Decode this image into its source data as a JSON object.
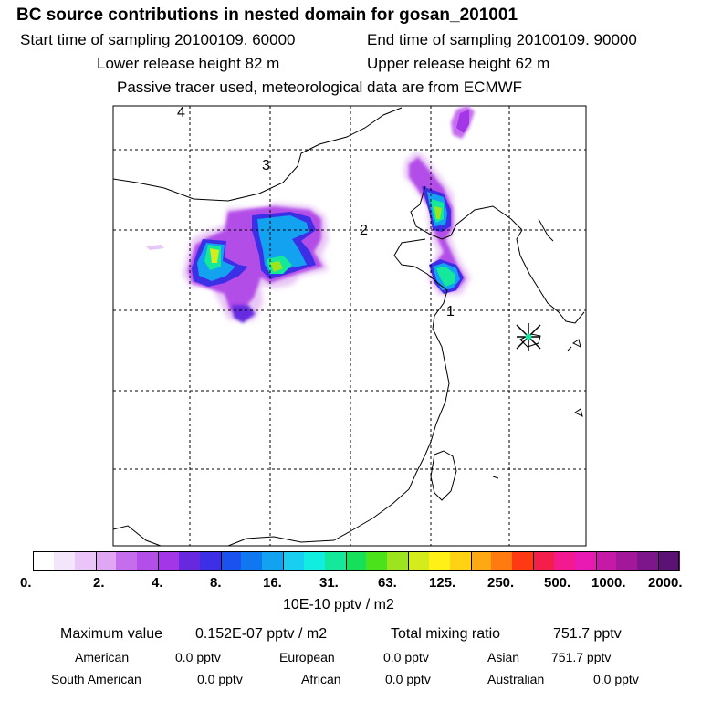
{
  "header": {
    "title": "BC  source contributions in nested domain for gosan_201001",
    "start_time": "Start time of sampling 20100109. 60000",
    "end_time": "End time of sampling 20100109. 90000",
    "lower_height": "Lower release height   82 m",
    "upper_height": "Upper release height   62 m",
    "note": "Passive tracer used, meteorological data are from ECMWF"
  },
  "map": {
    "labels": [
      "4",
      "3",
      "2",
      "1"
    ],
    "station_marker": "star-marker"
  },
  "colorbar": {
    "colors": [
      "#ffffff",
      "#f4e6fa",
      "#e9c6f7",
      "#dfa6f4",
      "#c66ded",
      "#b34ee8",
      "#a337e8",
      "#6629e0",
      "#3c2fe6",
      "#1a52f0",
      "#0f78f0",
      "#12a2f0",
      "#18cff2",
      "#11eee0",
      "#14e89a",
      "#16e05a",
      "#4be21c",
      "#9be41e",
      "#d4ec1c",
      "#fff017",
      "#ffd313",
      "#ffa912",
      "#ff7b10",
      "#ff3a13",
      "#f31f4a",
      "#f21a8e",
      "#e91ab3",
      "#c51aa6",
      "#a3189a",
      "#7d168a",
      "#5c1275"
    ],
    "tick_labels": [
      "0.",
      "2.",
      "4.",
      "8.",
      "16.",
      "31.",
      "63.",
      "125.",
      "250.",
      "500.",
      "1000.",
      "2000."
    ],
    "units": "10E-10 pptv / m2"
  },
  "summary": {
    "max_label": "Maximum value",
    "max_value": "0.152E-07 pptv / m2",
    "total_label": "Total mixing ratio",
    "total_value": "751.7 pptv",
    "regions": [
      {
        "name": "American",
        "value": "0.0 pptv"
      },
      {
        "name": "European",
        "value": "0.0 pptv"
      },
      {
        "name": "Asian",
        "value": "751.7 pptv"
      },
      {
        "name": "South American",
        "value": "0.0 pptv"
      },
      {
        "name": "African",
        "value": "0.0 pptv"
      },
      {
        "name": "Australian",
        "value": "0.0 pptv"
      }
    ]
  }
}
